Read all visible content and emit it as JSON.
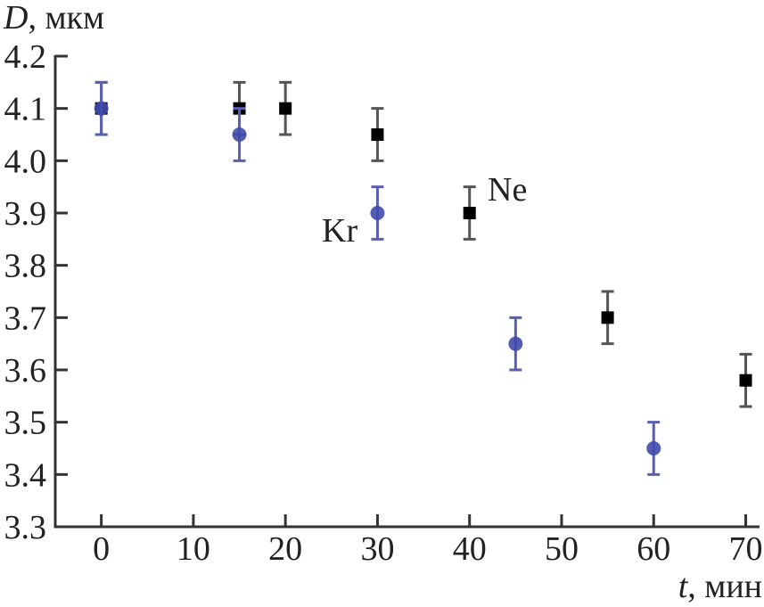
{
  "chart_data": {
    "type": "scatter",
    "title": "",
    "xlabel_var": "t",
    "xlabel_unit": ", мин",
    "ylabel_var": "D",
    "ylabel_unit": ", мкм",
    "xlim": [
      -5,
      71.5
    ],
    "ylim": [
      3.3,
      4.2
    ],
    "xticks": [
      "0",
      "10",
      "20",
      "30",
      "40",
      "50",
      "60",
      "70"
    ],
    "yticks": [
      "3.3",
      "3.4",
      "3.5",
      "3.6",
      "3.7",
      "3.8",
      "3.9",
      "4.0",
      "4.1",
      "4.2"
    ],
    "grid": false,
    "series": [
      {
        "name": "Ne",
        "marker": "square",
        "color": "#000000",
        "errorbar_color": "#555555",
        "x": [
          0,
          15,
          20,
          30,
          40,
          55,
          70
        ],
        "y": [
          4.1,
          4.1,
          4.1,
          4.05,
          3.9,
          3.7,
          3.58
        ],
        "yerr": [
          0.05,
          0.05,
          0.05,
          0.05,
          0.05,
          0.05,
          0.05
        ]
      },
      {
        "name": "Kr",
        "marker": "circle",
        "color": "#3f4bab",
        "errorbar_color": "#5a5fb0",
        "x": [
          0,
          15,
          30,
          45,
          60
        ],
        "y": [
          4.1,
          4.05,
          3.9,
          3.65,
          3.45
        ],
        "yerr": [
          0.05,
          0.05,
          0.05,
          0.05,
          0.05
        ]
      }
    ]
  }
}
